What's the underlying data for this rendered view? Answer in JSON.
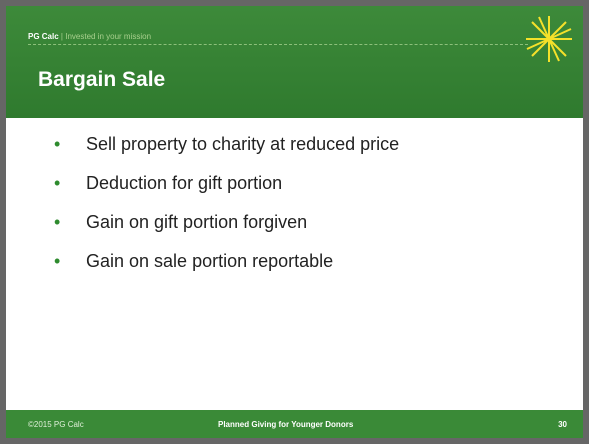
{
  "header": {
    "brand": "PG Calc",
    "separator": "|",
    "tagline": "Invested in your mission",
    "title": "Bargain Sale"
  },
  "bullets": [
    "Sell property to charity at reduced price",
    "Deduction for gift portion",
    "Gain on gift portion forgiven",
    "Gain on sale portion reportable"
  ],
  "footer": {
    "copyright": "©2015 PG Calc",
    "presentation": "Planned Giving for Younger Donors",
    "page": "30"
  }
}
